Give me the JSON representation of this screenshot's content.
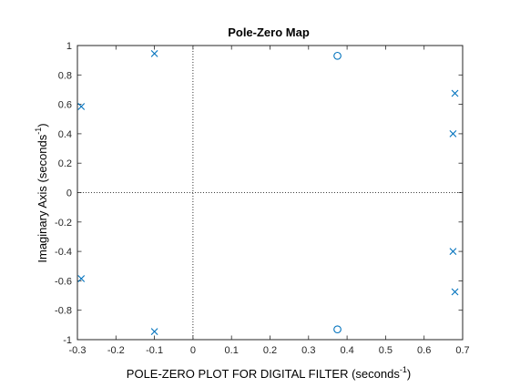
{
  "chart_data": {
    "type": "scatter",
    "title": "Pole-Zero Map",
    "xlabel": {
      "main": "POLE-ZERO PLOT FOR DIGITAL FILTER (seconds",
      "sup": "-1",
      "close": ")"
    },
    "ylabel": {
      "main": "Imaginary Axis (seconds",
      "sup": "-1",
      "close": ")"
    },
    "xlim": [
      -0.3,
      0.7
    ],
    "ylim": [
      -1,
      1
    ],
    "xticks": [
      -0.3,
      -0.2,
      -0.1,
      0,
      0.1,
      0.2,
      0.3,
      0.4,
      0.5,
      0.6,
      0.7
    ],
    "xtick_labels": [
      "-0.3",
      "-0.2",
      "-0.1",
      "0",
      "0.1",
      "0.2",
      "0.3",
      "0.4",
      "0.5",
      "0.6",
      "0.7"
    ],
    "yticks": [
      -1,
      -0.8,
      -0.6,
      -0.4,
      -0.2,
      0,
      0.2,
      0.4,
      0.6,
      0.8,
      1
    ],
    "ytick_labels": [
      "-1",
      "-0.8",
      "-0.6",
      "-0.4",
      "-0.2",
      "0",
      "0.2",
      "0.4",
      "0.6",
      "0.8",
      "1"
    ],
    "grid": false,
    "reference_lines": {
      "x": 0,
      "y": 0,
      "style": "dotted"
    },
    "marker_color": "#0072BD",
    "series": [
      {
        "marker": "x",
        "x": [
          -0.1,
          -0.1,
          -0.29,
          -0.29,
          0.68,
          0.68,
          0.675,
          0.675
        ],
        "y": [
          0.945,
          -0.945,
          0.585,
          -0.585,
          0.675,
          -0.675,
          0.4,
          -0.4
        ]
      },
      {
        "marker": "o",
        "x": [
          0.375,
          0.375
        ],
        "y": [
          0.93,
          -0.93
        ]
      }
    ]
  }
}
